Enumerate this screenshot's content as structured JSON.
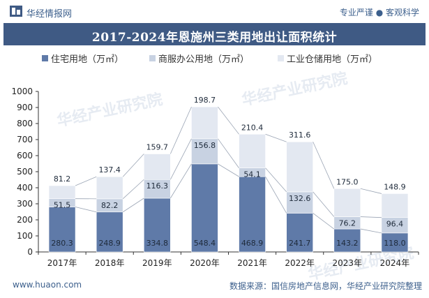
{
  "header": {
    "brand": "华经情报网",
    "tagline": "专业严谨 ● 客观科学"
  },
  "footer": {
    "url": "www.huaon.com",
    "source": "数据来源：国信房地产信息网，华经产业研究院整理"
  },
  "watermark": "华经产业研究院",
  "colors": {
    "residential": "#5f7aa8",
    "commercial": "#c8d2e2",
    "industrial": "#e3e8f1",
    "title_bg": "#3f5a84",
    "axis": "#333333"
  },
  "chart_data": {
    "type": "bar",
    "stacked": true,
    "title": "2017-2024年恩施州三类用地出让面积统计",
    "categories": [
      "2017年",
      "2018年",
      "2019年",
      "2020年",
      "2021年",
      "2022年",
      "2023年",
      "2024年"
    ],
    "series": [
      {
        "name": "住宅用地（万㎡）",
        "values": [
          280.3,
          248.9,
          334.8,
          548.4,
          468.9,
          241.7,
          143.2,
          118.0
        ]
      },
      {
        "name": "商服办公用地（万㎡）",
        "values": [
          51.5,
          82.2,
          116.3,
          156.8,
          54.1,
          132.6,
          76.2,
          96.4
        ]
      },
      {
        "name": "工业仓储用地（万㎡）",
        "values": [
          81.2,
          137.4,
          159.7,
          198.7,
          210.4,
          311.6,
          175.0,
          148.9
        ]
      }
    ],
    "ylim": [
      0,
      1000
    ],
    "yticks": [
      0,
      100,
      200,
      300,
      400,
      500,
      600,
      700,
      800,
      900,
      1000
    ],
    "legend_position": "top",
    "grid": false
  }
}
